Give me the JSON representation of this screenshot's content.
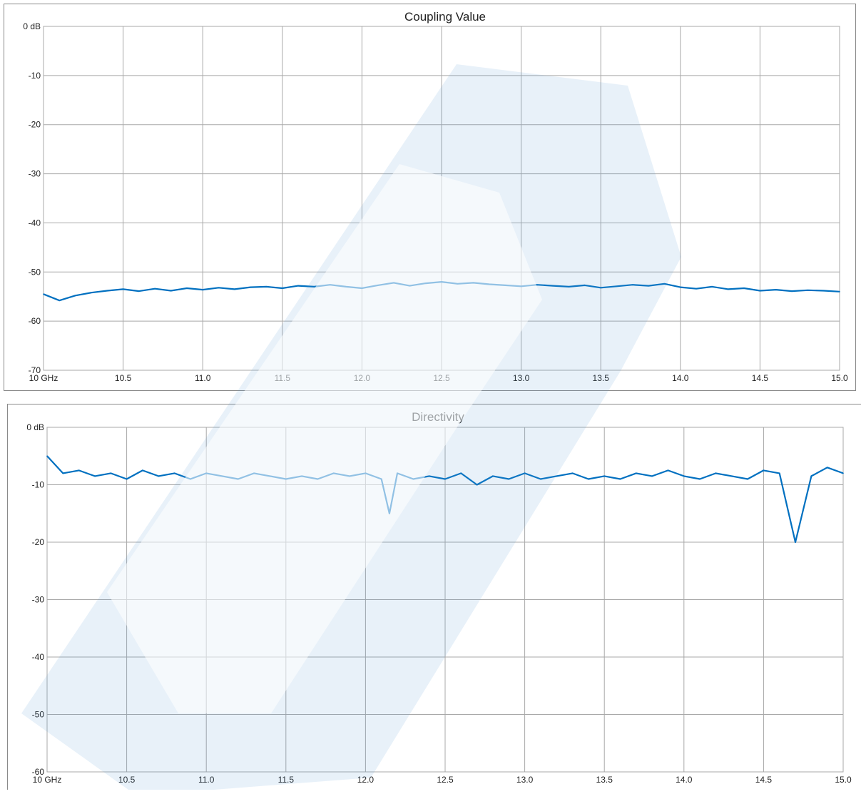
{
  "chart_data": [
    {
      "type": "line",
      "title": "Coupling Value",
      "y_tick_labels": [
        "0 dB",
        "-10",
        "-20",
        "-30",
        "-40",
        "-50",
        "-60",
        "-70"
      ],
      "x_tick_labels": [
        "10 GHz",
        "10.5",
        "11.0",
        "11.5",
        "12.0",
        "12.5",
        "13.0",
        "13.5",
        "14.0",
        "14.5",
        "15.0"
      ],
      "xlim": [
        10,
        15
      ],
      "ylim": [
        -70,
        0
      ],
      "grid": true,
      "series": [
        {
          "color": "#0070c0",
          "x": [
            10.0,
            10.1,
            10.2,
            10.3,
            10.4,
            10.5,
            10.6,
            10.7,
            10.8,
            10.9,
            11.0,
            11.1,
            11.2,
            11.3,
            11.4,
            11.5,
            11.6,
            11.7,
            11.8,
            11.9,
            12.0,
            12.1,
            12.2,
            12.3,
            12.4,
            12.5,
            12.6,
            12.7,
            12.8,
            12.9,
            13.0,
            13.1,
            13.2,
            13.3,
            13.4,
            13.5,
            13.6,
            13.7,
            13.8,
            13.9,
            14.0,
            14.1,
            14.2,
            14.3,
            14.4,
            14.5,
            14.6,
            14.7,
            14.8,
            14.9,
            15.0
          ],
          "y": [
            -54.5,
            -55.8,
            -54.8,
            -54.2,
            -53.8,
            -53.5,
            -53.9,
            -53.4,
            -53.8,
            -53.3,
            -53.6,
            -53.2,
            -53.5,
            -53.1,
            -53.0,
            -53.3,
            -52.8,
            -53.0,
            -52.6,
            -53.0,
            -53.3,
            -52.7,
            -52.2,
            -52.8,
            -52.3,
            -52.0,
            -52.4,
            -52.2,
            -52.5,
            -52.7,
            -52.9,
            -52.6,
            -52.8,
            -53.0,
            -52.7,
            -53.2,
            -52.9,
            -52.6,
            -52.8,
            -52.4,
            -53.1,
            -53.4,
            -53.0,
            -53.5,
            -53.3,
            -53.8,
            -53.6,
            -53.9,
            -53.7,
            -53.8,
            -54.0
          ]
        }
      ]
    },
    {
      "type": "line",
      "title": "Directivity",
      "y_tick_labels": [
        "0 dB",
        "-10",
        "-20",
        "-30",
        "-40",
        "-50",
        "-60"
      ],
      "x_tick_labels": [
        "10 GHz",
        "10.5",
        "11.0",
        "11.5",
        "12.0",
        "12.5",
        "13.0",
        "13.5",
        "14.0",
        "14.5",
        "15.0"
      ],
      "xlim": [
        10,
        15
      ],
      "ylim": [
        -60,
        0
      ],
      "grid": true,
      "series": [
        {
          "color": "#0070c0",
          "x": [
            10.0,
            10.1,
            10.2,
            10.3,
            10.4,
            10.5,
            10.6,
            10.7,
            10.8,
            10.9,
            11.0,
            11.1,
            11.2,
            11.3,
            11.4,
            11.5,
            11.6,
            11.7,
            11.8,
            11.9,
            12.0,
            12.1,
            12.15,
            12.2,
            12.3,
            12.4,
            12.5,
            12.6,
            12.7,
            12.8,
            12.9,
            13.0,
            13.1,
            13.2,
            13.3,
            13.4,
            13.5,
            13.6,
            13.7,
            13.8,
            13.9,
            14.0,
            14.1,
            14.2,
            14.3,
            14.4,
            14.5,
            14.6,
            14.7,
            14.8,
            14.9,
            15.0
          ],
          "y": [
            -5,
            -8,
            -7.5,
            -8.5,
            -8,
            -9,
            -7.5,
            -8.5,
            -8,
            -9,
            -8,
            -8.5,
            -9,
            -8,
            -8.5,
            -9,
            -8.5,
            -9,
            -8,
            -8.5,
            -8,
            -9,
            -15,
            -8,
            -9,
            -8.5,
            -9,
            -8,
            -10,
            -8.5,
            -9,
            -8,
            -9,
            -8.5,
            -8,
            -9,
            -8.5,
            -9,
            -8,
            -8.5,
            -7.5,
            -8.5,
            -9,
            -8,
            -8.5,
            -9,
            -7.5,
            -8,
            -20,
            -8.5,
            -7,
            -8
          ]
        }
      ]
    }
  ]
}
